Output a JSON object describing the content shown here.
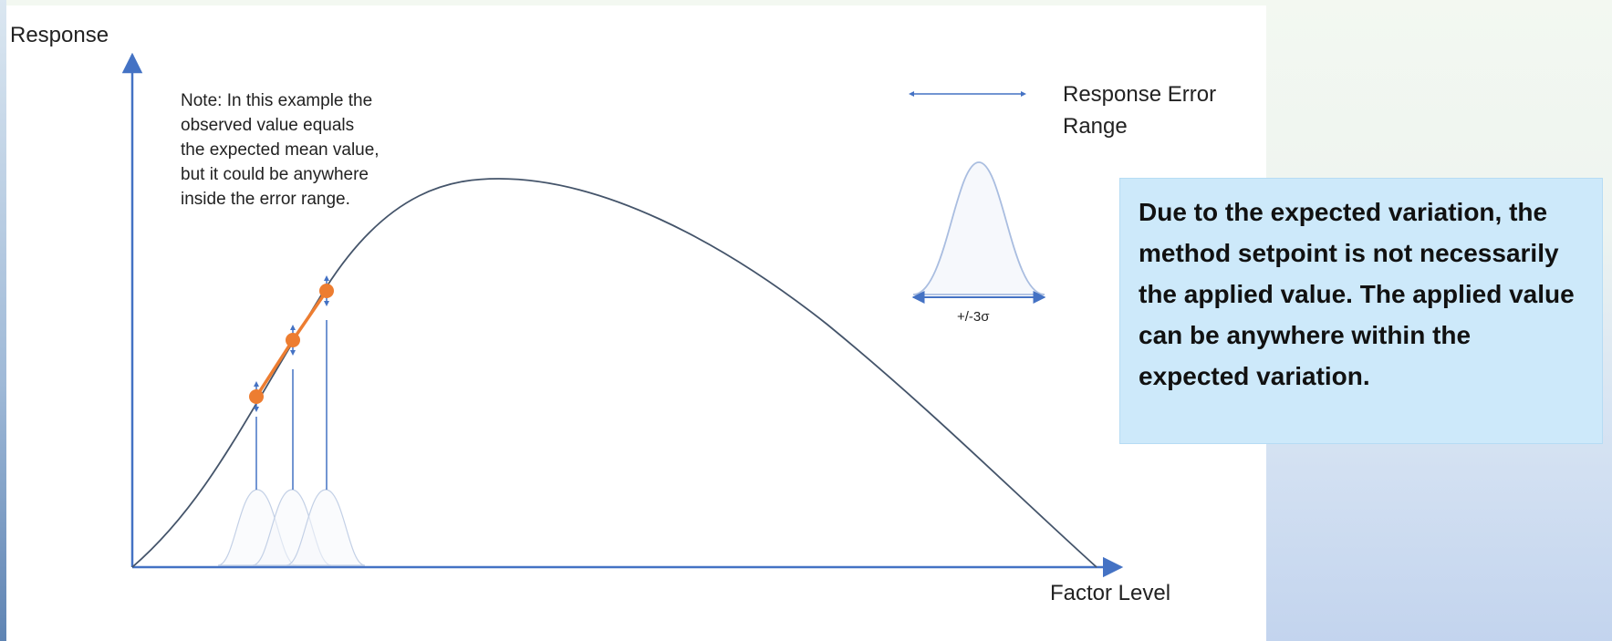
{
  "diagram": {
    "y_axis_label": "Response",
    "x_axis_label": "Factor Level",
    "note_lines": [
      "Note: In this example the",
      "observed value equals",
      "the expected mean value,",
      "but it could be anywhere",
      "inside the error range."
    ],
    "legend_lines": [
      "Response Error",
      "Range"
    ],
    "sigma_label": "+/-3σ",
    "colors": {
      "axis": "#4472c4",
      "curve": "#44546a",
      "points": "#ed7d31",
      "error_bar": "#4472c4",
      "gaussian": "#a9bde0"
    }
  },
  "callout": {
    "text": "Due to the expected variation, the method setpoint is not necessarily the applied value. The applied value can be anywhere within the expected variation."
  }
}
